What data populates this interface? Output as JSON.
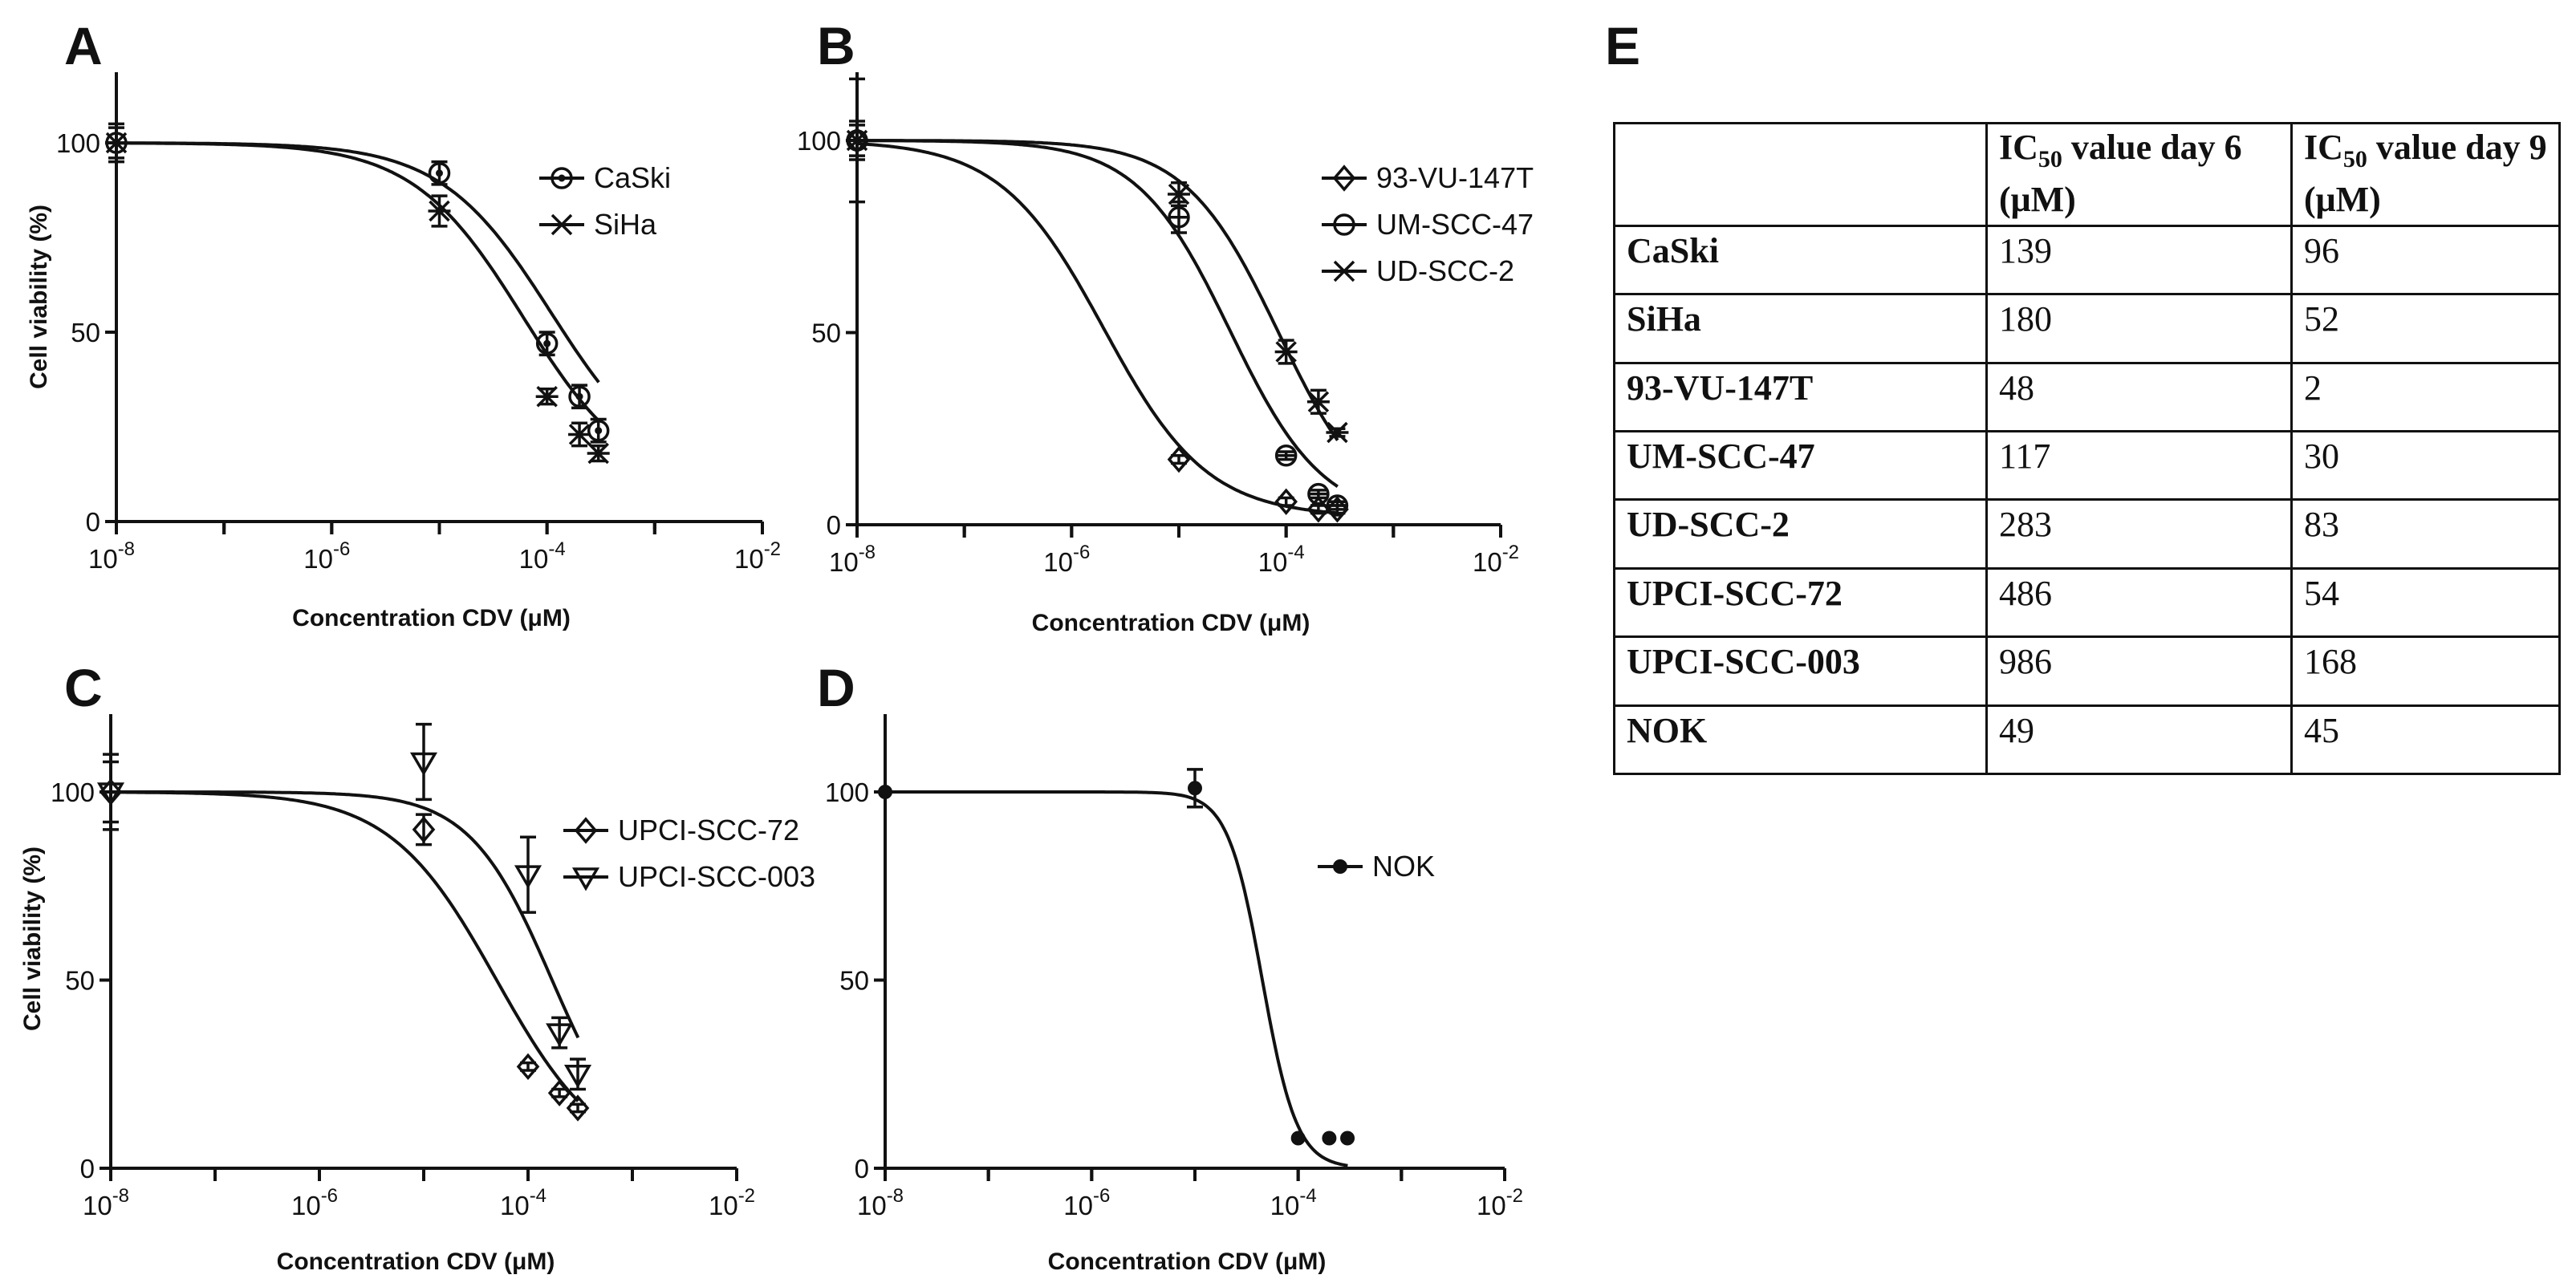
{
  "panel_letters": {
    "a": "A",
    "b": "B",
    "c": "C",
    "d": "D",
    "e": "E"
  },
  "chart_data": [
    {
      "panel": "A",
      "type": "line",
      "xscale": "log",
      "xlim": [
        1e-08,
        0.01
      ],
      "ylim": [
        0,
        110
      ],
      "xlabel": "Concentration CDV (μM)",
      "ylabel": "Cell viability (%)",
      "x_ticks": [
        {
          "v": -8,
          "base": "10",
          "exp": "-8"
        },
        {
          "v": -6,
          "base": "10",
          "exp": "-6"
        },
        {
          "v": -4,
          "base": "10",
          "exp": "-4"
        },
        {
          "v": -2,
          "base": "10",
          "exp": "-2"
        }
      ],
      "y_ticks": [
        {
          "v": 0,
          "label": "0"
        },
        {
          "v": 50,
          "label": "50"
        },
        {
          "v": 100,
          "label": "100"
        }
      ],
      "legend_position": "top-right",
      "series": [
        {
          "name": "CaSki",
          "marker": "circle-dot",
          "points": [
            {
              "x": 1e-08,
              "y": 100,
              "err": 4
            },
            {
              "x": 1e-05,
              "y": 92,
              "err": 3
            },
            {
              "x": 0.0001,
              "y": 47,
              "err": 3
            },
            {
              "x": 0.0002,
              "y": 33,
              "err": 3
            },
            {
              "x": 0.0003,
              "y": 24,
              "err": 3
            }
          ],
          "fit": {
            "top": 100,
            "bottom": 10,
            "ic50": 0.00011,
            "hill": 0.85
          }
        },
        {
          "name": "SiHa",
          "marker": "star",
          "points": [
            {
              "x": 1e-08,
              "y": 100,
              "err": 5
            },
            {
              "x": 1e-05,
              "y": 82,
              "err": 4
            },
            {
              "x": 0.0001,
              "y": 33,
              "err": 2
            },
            {
              "x": 0.0002,
              "y": 23,
              "err": 3
            },
            {
              "x": 0.0003,
              "y": 18,
              "err": 2
            }
          ],
          "fit": {
            "top": 100,
            "bottom": 8,
            "ic50": 6e-05,
            "hill": 0.85
          }
        }
      ]
    },
    {
      "panel": "B",
      "type": "line",
      "xscale": "log",
      "xlim": [
        1e-08,
        0.01
      ],
      "ylim": [
        0,
        110
      ],
      "xlabel": "Concentration CDV (μM)",
      "ylabel": "",
      "x_ticks": [
        {
          "v": -8,
          "base": "10",
          "exp": "-8"
        },
        {
          "v": -6,
          "base": "10",
          "exp": "-6"
        },
        {
          "v": -4,
          "base": "10",
          "exp": "-4"
        },
        {
          "v": -2,
          "base": "10",
          "exp": "-2"
        }
      ],
      "y_ticks": [
        {
          "v": 0,
          "label": "0"
        },
        {
          "v": 50,
          "label": "50"
        },
        {
          "v": 100,
          "label": "100"
        }
      ],
      "legend_position": "top-right",
      "series": [
        {
          "name": "93-VU-147T",
          "marker": "diamond",
          "points": [
            {
              "x": 1e-08,
              "y": 100,
              "err": 16
            },
            {
              "x": 1e-05,
              "y": 17,
              "err": 1
            },
            {
              "x": 0.0001,
              "y": 6,
              "err": 1
            },
            {
              "x": 0.0002,
              "y": 4,
              "err": 1
            },
            {
              "x": 0.0003,
              "y": 4,
              "err": 1
            }
          ],
          "fit": {
            "top": 100,
            "bottom": 2,
            "ic50": 2e-06,
            "hill": 0.9
          }
        },
        {
          "name": "UM-SCC-47",
          "marker": "circle-line",
          "points": [
            {
              "x": 1e-08,
              "y": 100,
              "err": 5
            },
            {
              "x": 1e-05,
              "y": 80,
              "err": 4
            },
            {
              "x": 0.0001,
              "y": 18,
              "err": 1
            },
            {
              "x": 0.0002,
              "y": 8,
              "err": 1
            },
            {
              "x": 0.0003,
              "y": 5,
              "err": 1
            }
          ],
          "fit": {
            "top": 100,
            "bottom": 1,
            "ic50": 3e-05,
            "hill": 1.0
          }
        },
        {
          "name": "UD-SCC-2",
          "marker": "star",
          "points": [
            {
              "x": 1e-08,
              "y": 100,
              "err": 4
            },
            {
              "x": 1e-05,
              "y": 86,
              "err": 3
            },
            {
              "x": 0.0001,
              "y": 45,
              "err": 3
            },
            {
              "x": 0.0002,
              "y": 32,
              "err": 3
            },
            {
              "x": 0.0003,
              "y": 24,
              "err": 1
            }
          ],
          "fit": {
            "top": 100,
            "bottom": 0,
            "ic50": 8.5e-05,
            "hill": 1.0
          }
        }
      ]
    },
    {
      "panel": "C",
      "type": "line",
      "xscale": "log",
      "xlim": [
        1e-08,
        0.01
      ],
      "ylim": [
        0,
        110
      ],
      "xlabel": "Concentration CDV (μM)",
      "ylabel": "Cell viability (%)",
      "x_ticks": [
        {
          "v": -8,
          "base": "10",
          "exp": "-8"
        },
        {
          "v": -6,
          "base": "10",
          "exp": "-6"
        },
        {
          "v": -4,
          "base": "10",
          "exp": "-4"
        },
        {
          "v": -2,
          "base": "10",
          "exp": "-2"
        }
      ],
      "y_ticks": [
        {
          "v": 0,
          "label": "0"
        },
        {
          "v": 50,
          "label": "50"
        },
        {
          "v": 100,
          "label": "100"
        }
      ],
      "legend_position": "top-right",
      "series": [
        {
          "name": "UPCI-SCC-72",
          "marker": "diamond",
          "points": [
            {
              "x": 1e-08,
              "y": 100,
              "err": 8
            },
            {
              "x": 1e-05,
              "y": 90,
              "err": 4
            },
            {
              "x": 0.0001,
              "y": 27,
              "err": 1
            },
            {
              "x": 0.0002,
              "y": 20,
              "err": 1
            },
            {
              "x": 0.0003,
              "y": 16,
              "err": 1
            }
          ],
          "fit": {
            "top": 100,
            "bottom": 0,
            "ic50": 5e-05,
            "hill": 0.85
          }
        },
        {
          "name": "UPCI-SCC-003",
          "marker": "triangle-down",
          "points": [
            {
              "x": 1e-08,
              "y": 100,
              "err": 10
            },
            {
              "x": 1e-05,
              "y": 108,
              "err": 10
            },
            {
              "x": 0.0001,
              "y": 78,
              "err": 10
            },
            {
              "x": 0.0002,
              "y": 36,
              "err": 4
            },
            {
              "x": 0.0003,
              "y": 25,
              "err": 4
            }
          ],
          "fit": {
            "top": 100,
            "bottom": 0,
            "ic50": 0.00017,
            "hill": 1.1
          }
        }
      ]
    },
    {
      "panel": "D",
      "type": "line",
      "xscale": "log",
      "xlim": [
        1e-08,
        0.01
      ],
      "ylim": [
        0,
        110
      ],
      "xlabel": "Concentration CDV (μM)",
      "ylabel": "",
      "x_ticks": [
        {
          "v": -8,
          "base": "10",
          "exp": "-8"
        },
        {
          "v": -6,
          "base": "10",
          "exp": "-6"
        },
        {
          "v": -4,
          "base": "10",
          "exp": "-4"
        },
        {
          "v": -2,
          "base": "10",
          "exp": "-2"
        }
      ],
      "y_ticks": [
        {
          "v": 0,
          "label": "0"
        },
        {
          "v": 50,
          "label": "50"
        },
        {
          "v": 100,
          "label": "100"
        }
      ],
      "legend_position": "right",
      "series": [
        {
          "name": "NOK",
          "marker": "dot",
          "points": [
            {
              "x": 1e-08,
              "y": 100,
              "err": 0
            },
            {
              "x": 1e-05,
              "y": 101,
              "err": 5
            },
            {
              "x": 0.0001,
              "y": 8,
              "err": 0
            },
            {
              "x": 0.0002,
              "y": 8,
              "err": 0
            },
            {
              "x": 0.0003,
              "y": 8,
              "err": 0
            }
          ],
          "fit": {
            "top": 100,
            "bottom": 0,
            "ic50": 4.5e-05,
            "hill": 2.6
          }
        }
      ]
    },
    {
      "panel": "E",
      "type": "table",
      "columns": [
        "",
        "IC50 value day 6 (μM)",
        "IC50 value day 9 (μM)"
      ],
      "rows": [
        [
          "CaSki",
          "139",
          "96"
        ],
        [
          "SiHa",
          "180",
          "52"
        ],
        [
          "93-VU-147T",
          "48",
          "2"
        ],
        [
          "UM-SCC-47",
          "117",
          "30"
        ],
        [
          "UD-SCC-2",
          "283",
          "83"
        ],
        [
          "UPCI-SCC-72",
          "486",
          "54"
        ],
        [
          "UPCI-SCC-003",
          "986",
          "168"
        ],
        [
          "NOK",
          "49",
          "45"
        ]
      ]
    }
  ],
  "table": {
    "head_prefix": "IC",
    "head_sub": "50",
    "head_col1_rest": " value day 6 (μM)",
    "head_col2_rest": " value day 9 (μM)"
  }
}
